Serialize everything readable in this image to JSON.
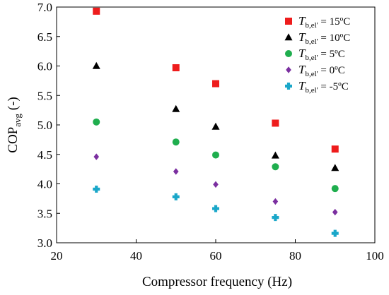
{
  "chart_data": {
    "type": "scatter",
    "xlabel": "Compressor frequency (Hz)",
    "ylabel": {
      "base": "COP",
      "subscript": "avg",
      "suffix": " (-)"
    },
    "xlim": [
      20,
      100
    ],
    "ylim": [
      3.0,
      7.0
    ],
    "xticks": [
      20,
      40,
      60,
      80,
      100
    ],
    "yticks": [
      "3.0",
      "3.5",
      "4.0",
      "4.5",
      "5.0",
      "5.5",
      "6.0",
      "6.5",
      "7.0"
    ],
    "grid": false,
    "legend_position": "top-right",
    "x": [
      30,
      50,
      60,
      75,
      90
    ],
    "series": [
      {
        "name": "T b,el' = 15ºC",
        "label_main": "T",
        "label_sub": "b,el'",
        "label_rest": " = 15ºC",
        "marker": "square",
        "color": "#ee1c1c",
        "values": [
          6.93,
          5.97,
          5.7,
          5.03,
          4.59
        ]
      },
      {
        "name": "T b,el' = 10ºC",
        "label_main": "T",
        "label_sub": "b,el'",
        "label_rest": " = 10ºC",
        "marker": "triangle",
        "color": "#000000",
        "values": [
          6.0,
          5.27,
          4.97,
          4.48,
          4.27
        ]
      },
      {
        "name": "T b,el' = 5ºC",
        "label_main": "T",
        "label_sub": "b,el'",
        "label_rest": " = 5ºC",
        "marker": "circle",
        "color": "#1fae4e",
        "values": [
          5.05,
          4.71,
          4.49,
          4.29,
          3.92
        ]
      },
      {
        "name": "T b,el' = 0ºC",
        "label_main": "T",
        "label_sub": "b,el'",
        "label_rest": " = 0ºC",
        "marker": "diamond",
        "color": "#7b2fa0",
        "values": [
          4.46,
          4.21,
          3.99,
          3.7,
          3.52
        ]
      },
      {
        "name": "T b,el' = -5ºC",
        "label_main": "T",
        "label_sub": "b,el'",
        "label_rest": " = -5ºC",
        "marker": "plus",
        "color": "#1aa7c9",
        "values": [
          3.91,
          3.78,
          3.58,
          3.43,
          3.16
        ]
      }
    ]
  }
}
